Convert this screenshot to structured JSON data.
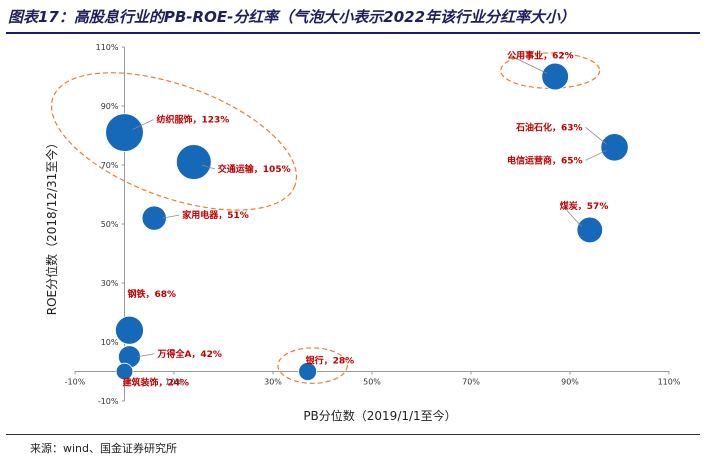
{
  "title": "图表17：高股息行业的PB-ROE-分红率（气泡大小表示2022年该行业分红率大小）",
  "source": "来源：wind、国金证券研究所",
  "chart_data": {
    "type": "scatter",
    "bubble": true,
    "xlabel": "PB分位数（2019/1/1至今）",
    "ylabel": "ROE分位数（2018/12/31至今）",
    "xlim": [
      -0.1,
      1.1
    ],
    "ylim": [
      -0.1,
      1.1
    ],
    "xticks": [
      "-10%",
      "10%",
      "30%",
      "50%",
      "70%",
      "90%",
      "110%"
    ],
    "yticks": [
      "-10%",
      "10%",
      "30%",
      "50%",
      "70%",
      "90%",
      "110%"
    ],
    "grid": false,
    "bubble_color": "#1668b8",
    "label_color": "#c00000",
    "highlight_color": "#ed7d31",
    "points": [
      {
        "label": "纺织服饰，123%",
        "x": 0.0,
        "y": 0.81,
        "size": 1.23
      },
      {
        "label": "交通运输，105%",
        "x": 0.14,
        "y": 0.71,
        "size": 1.05
      },
      {
        "label": "家用电器，51%",
        "x": 0.06,
        "y": 0.52,
        "size": 0.51
      },
      {
        "label": "钢铁，68%",
        "x": 0.01,
        "y": 0.14,
        "size": 0.68
      },
      {
        "label": "万得全A，42%",
        "x": 0.01,
        "y": 0.05,
        "size": 0.42
      },
      {
        "label": "建筑装饰，24%",
        "x": 0.0,
        "y": 0.0,
        "size": 0.24
      },
      {
        "label": "银行，28%",
        "x": 0.37,
        "y": 0.0,
        "size": 0.28
      },
      {
        "label": "公用事业，62%",
        "x": 0.87,
        "y": 1.0,
        "size": 0.62
      },
      {
        "label": "石油石化，63%",
        "x": 0.99,
        "y": 0.76,
        "size": 0.63
      },
      {
        "label": "电信运营商，65%",
        "x": 0.99,
        "y": 0.76,
        "size": 0.65
      },
      {
        "label": "煤炭，57%",
        "x": 0.94,
        "y": 0.48,
        "size": 0.57
      }
    ]
  }
}
